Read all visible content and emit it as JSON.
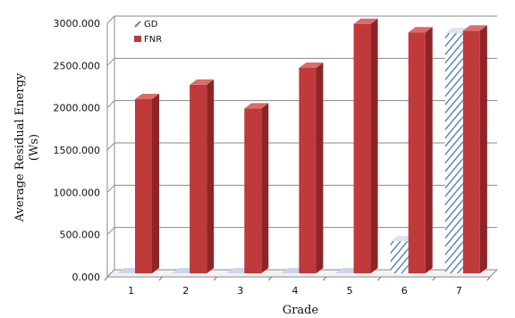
{
  "chart_data": {
    "type": "bar",
    "categories": [
      "1",
      "2",
      "3",
      "4",
      "5",
      "6",
      "7"
    ],
    "series": [
      {
        "name": "GD",
        "values": [
          0,
          0,
          0,
          0,
          0,
          380,
          2840
        ]
      },
      {
        "name": "FNR",
        "values": [
          2060,
          2230,
          1950,
          2430,
          2950,
          2850,
          2870
        ]
      }
    ],
    "y_ticks": [
      "0.000",
      "500.000",
      "1000.000",
      "1500.000",
      "2000.000",
      "2500.000",
      "3000.000"
    ],
    "ylim": [
      0,
      3000
    ],
    "xlabel": "Grade",
    "ylabel_line1": "Average Residual Energy",
    "ylabel_line2": "(Ws)",
    "legend_placement": "top-left",
    "grid": true,
    "colors": {
      "FNR_front": "#c0393b",
      "FNR_side": "#8e2426",
      "FNR_top": "#de6b6c",
      "GD_stripe": "#5b86c0",
      "grid": "#8a8a8a"
    }
  }
}
